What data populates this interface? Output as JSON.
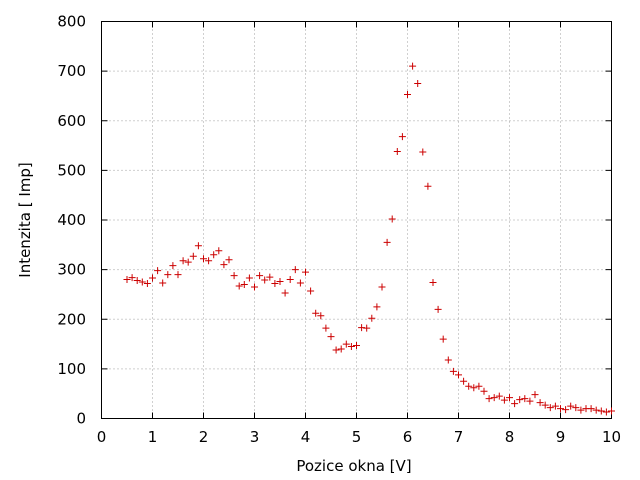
{
  "chart_data": {
    "type": "scatter",
    "xlabel": "Pozice okna [V]",
    "ylabel": "Intenzita [ Imp]",
    "xlim": [
      0,
      10
    ],
    "ylim": [
      0,
      800
    ],
    "x_ticks": [
      "0",
      "1",
      "2",
      "3",
      "4",
      "5",
      "6",
      "7",
      "8",
      "9",
      "10"
    ],
    "y_ticks": [
      "0",
      "100",
      "200",
      "300",
      "400",
      "500",
      "600",
      "700",
      "800"
    ],
    "grid": true,
    "marker": "+",
    "point_color": "#cc0000",
    "x": [
      0.5,
      0.6,
      0.7,
      0.8,
      0.9,
      1.0,
      1.1,
      1.2,
      1.3,
      1.4,
      1.5,
      1.6,
      1.7,
      1.8,
      1.9,
      2.0,
      2.1,
      2.2,
      2.3,
      2.4,
      2.5,
      2.6,
      2.7,
      2.8,
      2.9,
      3.0,
      3.1,
      3.2,
      3.3,
      3.4,
      3.5,
      3.6,
      3.7,
      3.8,
      3.9,
      4.0,
      4.1,
      4.2,
      4.3,
      4.4,
      4.5,
      4.6,
      4.7,
      4.8,
      4.9,
      5.0,
      5.1,
      5.2,
      5.3,
      5.4,
      5.5,
      5.6,
      5.7,
      5.8,
      5.9,
      6.0,
      6.1,
      6.2,
      6.3,
      6.4,
      6.5,
      6.6,
      6.7,
      6.8,
      6.9,
      7.0,
      7.1,
      7.2,
      7.3,
      7.4,
      7.5,
      7.6,
      7.7,
      7.8,
      7.9,
      8.0,
      8.1,
      8.2,
      8.3,
      8.4,
      8.5,
      8.6,
      8.7,
      8.8,
      8.9,
      9.0,
      9.1,
      9.2,
      9.3,
      9.4,
      9.5,
      9.6,
      9.7,
      9.8,
      9.9,
      10.0
    ],
    "y": [
      280,
      284,
      278,
      275,
      272,
      283,
      298,
      273,
      290,
      308,
      290,
      318,
      315,
      327,
      348,
      322,
      318,
      330,
      338,
      310,
      320,
      288,
      267,
      270,
      283,
      265,
      288,
      279,
      285,
      272,
      276,
      253,
      280,
      300,
      273,
      295,
      257,
      212,
      207,
      182,
      165,
      138,
      140,
      150,
      145,
      147,
      183,
      182,
      202,
      225,
      265,
      355,
      402,
      538,
      568,
      653,
      710,
      675,
      537,
      468,
      274,
      220,
      160,
      118,
      95,
      88,
      75,
      65,
      62,
      65,
      55,
      40,
      42,
      45,
      37,
      42,
      30,
      38,
      40,
      35,
      48,
      32,
      27,
      22,
      25,
      20,
      18,
      25,
      22,
      17,
      20,
      20,
      17,
      15,
      13,
      15
    ]
  }
}
